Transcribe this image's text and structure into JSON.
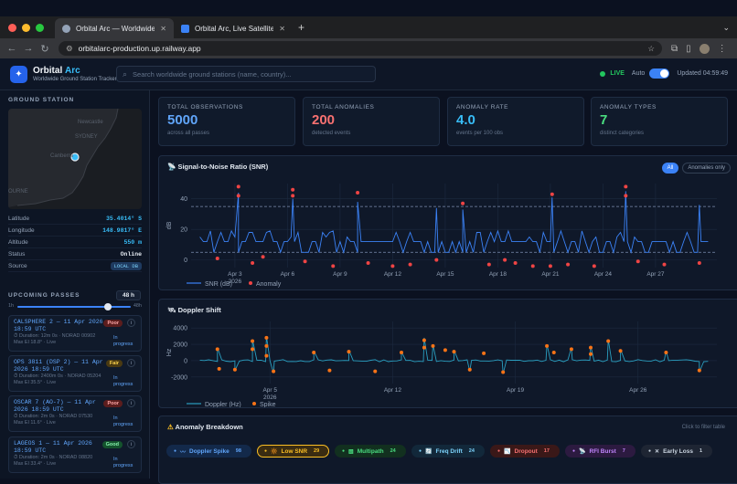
{
  "browser": {
    "tabs": [
      {
        "title": "Orbital Arc — Worldwide Grou",
        "active": true
      },
      {
        "title": "Orbital Arc, Live Satellite Pass",
        "active": false
      }
    ],
    "url": "orbitalarc-production.up.railway.app"
  },
  "header": {
    "brand_a": "Orbital",
    "brand_b": "Arc",
    "subtitle": "Worldwide Ground Station Tracker",
    "search_placeholder": "Search worldwide ground stations (name, country)...",
    "live": "LIVE",
    "auto": "Auto",
    "auto_enabled": true,
    "updated": "Updated 04:59:49"
  },
  "sidebar": {
    "ground_station_title": "GROUND STATION",
    "map_labels": [
      "Newcastle",
      "SYDNEY",
      "Canberra",
      "OURNE"
    ],
    "properties": [
      {
        "key": "Latitude",
        "value": "35.4014° S"
      },
      {
        "key": "Longitude",
        "value": "148.9817° E"
      },
      {
        "key": "Altitude",
        "value": "550 m"
      },
      {
        "key": "Status",
        "value": "Online"
      },
      {
        "key": "Source",
        "value": "LOCAL DB"
      }
    ],
    "upcoming_title": "UPCOMING PASSES",
    "hours": "48 h",
    "slider_min": "1h",
    "slider_max": "48h",
    "slider_value_fraction": 0.96,
    "passes": [
      {
        "name": "CALSPHERE 2 — 11 Apr 2026 18:59 UTC",
        "quality": "Poor",
        "detail1": "Duration: 12m 0s · NORAD 00902",
        "detail2": "Max El 18.8° · Live",
        "status": "In progress"
      },
      {
        "name": "OPS 3811 (DSP 2) — 11 Apr 2026 18:59 UTC",
        "quality": "Fair",
        "detail1": "Duration: 2400m 0s · NORAD 05204",
        "detail2": "Max El 35.5° · Live",
        "status": "In progress"
      },
      {
        "name": "OSCAR 7 (AO-7) — 11 Apr 2026 18:59 UTC",
        "quality": "Poor",
        "detail1": "Duration: 2m 0s · NORAD 07530",
        "detail2": "Max El 11.6° · Live",
        "status": "In progress"
      },
      {
        "name": "LAGEOS 1 — 11 Apr 2026 18:59 UTC",
        "quality": "Good",
        "detail1": "Duration: 2m 0s · NORAD 08820",
        "detail2": "Max El 33.4° · Live",
        "status": "In progress"
      }
    ]
  },
  "stats": [
    {
      "title": "TOTAL OBSERVATIONS",
      "value": "5000",
      "sub": "across all passes",
      "color": "#60a5fa"
    },
    {
      "title": "TOTAL ANOMALIES",
      "value": "200",
      "sub": "detected events",
      "color": "#f87171"
    },
    {
      "title": "ANOMALY RATE",
      "value": "4.0",
      "sub": "events per 100 obs",
      "color": "#38bdf8"
    },
    {
      "title": "ANOMALY TYPES",
      "value": "7",
      "sub": "distinct categories",
      "color": "#4ade80"
    }
  ],
  "snr_panel": {
    "title": "Signal-to-Noise Ratio (SNR)",
    "btn_all": "All",
    "btn_anom": "Anomalies only"
  },
  "doppler_panel": {
    "title": "Doppler Shift"
  },
  "breakdown": {
    "title": "Anomaly Breakdown",
    "hint": "Click to filter table",
    "chips": [
      {
        "label": "Doppler Spike",
        "count": "98",
        "color": "#60a5fa",
        "bg": "#13294a"
      },
      {
        "label": "Low SNR",
        "count": "29",
        "color": "#fbbf24",
        "bg": "#3a2c12",
        "selected": true
      },
      {
        "label": "Multipath",
        "count": "24",
        "color": "#4ade80",
        "bg": "#12301f"
      },
      {
        "label": "Freq Drift",
        "count": "24",
        "color": "#7dd3fc",
        "bg": "#12283a"
      },
      {
        "label": "Dropout",
        "count": "17",
        "color": "#f87171",
        "bg": "#3a1818"
      },
      {
        "label": "RFI Burst",
        "count": "7",
        "color": "#c084fc",
        "bg": "#2c1a40"
      },
      {
        "label": "Early Loss",
        "count": "1",
        "color": "#cbd5e1",
        "bg": "#1e2533"
      }
    ]
  },
  "chart_data": [
    {
      "type": "line",
      "ylabel": "dB",
      "ylim": [
        -5,
        50
      ],
      "yticks": [
        0,
        20,
        40
      ],
      "x_tick_labels": [
        "Apr 3\n2026",
        "Apr 6",
        "Apr 9",
        "Apr 12",
        "Apr 15",
        "Apr 18",
        "Apr 21",
        "Apr 24",
        "Apr 27"
      ],
      "x_ticks_day": [
        3,
        6,
        9,
        12,
        15,
        18,
        21,
        24,
        27
      ],
      "xlim_day": [
        0.5,
        30.5
      ],
      "reference_lines": [
        35,
        5
      ],
      "series": [
        {
          "name": "SNR (dB)",
          "baseline": 12,
          "low": 5,
          "high": [
            18,
            15,
            19
          ],
          "spikes": [
            [
              3.2,
              44
            ],
            [
              6.3,
              40
            ],
            [
              10,
              38
            ],
            [
              14.5,
              34
            ],
            [
              16,
              33
            ],
            [
              21.1,
              41
            ],
            [
              25.3,
              45
            ],
            [
              29.5,
              36
            ]
          ]
        },
        {
          "name": "Anomaly",
          "points": [
            [
              2,
              1
            ],
            [
              4,
              -2
            ],
            [
              4.6,
              2
            ],
            [
              6.3,
              46
            ],
            [
              6.3,
              42
            ],
            [
              7,
              -1
            ],
            [
              8.6,
              -4
            ],
            [
              10,
              44
            ],
            [
              10.6,
              -2
            ],
            [
              12,
              -4
            ],
            [
              13,
              -3
            ],
            [
              14.5,
              0
            ],
            [
              16,
              37
            ],
            [
              17.5,
              -3
            ],
            [
              18.4,
              0
            ],
            [
              19,
              -2
            ],
            [
              20,
              -4
            ],
            [
              21.1,
              43
            ],
            [
              21,
              -4
            ],
            [
              22,
              -3
            ],
            [
              23.5,
              -4
            ],
            [
              25.3,
              48
            ],
            [
              25.3,
              42
            ],
            [
              26,
              -1
            ],
            [
              27.5,
              -3
            ],
            [
              29.5,
              -2
            ],
            [
              3.2,
              48
            ],
            [
              3.2,
              42
            ]
          ]
        }
      ]
    },
    {
      "type": "line",
      "ylabel": "Hz",
      "ylim": [
        -2800,
        4800
      ],
      "yticks": [
        -2000,
        0,
        2000,
        4000
      ],
      "x_tick_labels": [
        "Apr 5\n2026",
        "Apr 12",
        "Apr 19",
        "Apr 26"
      ],
      "x_ticks_day": [
        5,
        12,
        19,
        26
      ],
      "xlim_day": [
        0.5,
        30.5
      ],
      "series": [
        {
          "name": "Doppler (Hz)",
          "baseline": 0,
          "spikes": [
            [
              2,
              1600
            ],
            [
              3,
              -1200
            ],
            [
              4,
              2600
            ],
            [
              4.8,
              3000
            ],
            [
              5.2,
              -1500
            ],
            [
              7.5,
              1200
            ],
            [
              9.5,
              1300
            ],
            [
              12.5,
              1100
            ],
            [
              13.8,
              2800
            ],
            [
              14.3,
              2000
            ],
            [
              15.5,
              1300
            ],
            [
              16.4,
              -1300
            ],
            [
              18.3,
              -1600
            ],
            [
              20.8,
              2000
            ],
            [
              22.2,
              1600
            ],
            [
              23.3,
              1800
            ],
            [
              24.3,
              2600
            ],
            [
              25,
              1400
            ],
            [
              27.6,
              1200
            ],
            [
              29.5,
              -1400
            ]
          ]
        },
        {
          "name": "Spike",
          "points": [
            [
              2,
              1400
            ],
            [
              2.1,
              -1000
            ],
            [
              3,
              -1100
            ],
            [
              4,
              2400
            ],
            [
              4,
              1400
            ],
            [
              4.8,
              2800
            ],
            [
              4.8,
              1800
            ],
            [
              4.8,
              600
            ],
            [
              5.2,
              -1300
            ],
            [
              7.5,
              1000
            ],
            [
              8.4,
              -1200
            ],
            [
              9.5,
              1100
            ],
            [
              11,
              -1300
            ],
            [
              12.5,
              1000
            ],
            [
              13.8,
              2500
            ],
            [
              13.8,
              1600
            ],
            [
              14.3,
              1800
            ],
            [
              15,
              1300
            ],
            [
              15.5,
              1100
            ],
            [
              16.4,
              -1100
            ],
            [
              17.2,
              900
            ],
            [
              18.3,
              -1400
            ],
            [
              20.8,
              1800
            ],
            [
              21.2,
              1000
            ],
            [
              22.2,
              1400
            ],
            [
              23.3,
              1600
            ],
            [
              23.3,
              800
            ],
            [
              24.3,
              2400
            ],
            [
              25,
              1200
            ],
            [
              27.6,
              1000
            ],
            [
              29.5,
              -1200
            ]
          ]
        }
      ]
    }
  ],
  "colors": {
    "snr_line": "#3b82f6",
    "anomaly": "#ef4444",
    "doppler_line": "#2a9fc0",
    "spike": "#f97316"
  }
}
